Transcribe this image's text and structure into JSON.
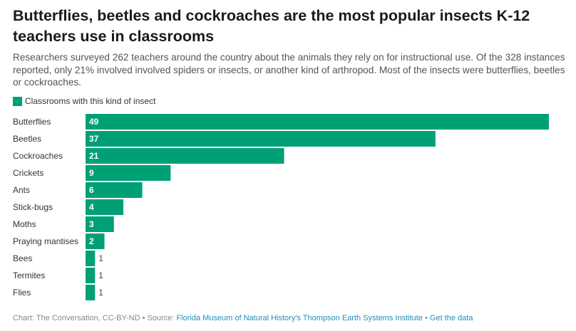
{
  "title": "Butterflies, beetles and cockroaches are the most popular insects K-12 teachers use in classrooms",
  "subtitle": "Researchers surveyed 262 teachers around the country about the animals they rely on for instructional use. Of the 328 instances reported, only 21% involved involved spiders or insects, or another kind of arthropod. Most of the insects were butterflies, beetles or cockroaches.",
  "legend_label": "Classrooms with this kind of insect",
  "colors": {
    "bar": "#00a076",
    "label_inside": "#ffffff",
    "label_outside": "#444444"
  },
  "chart_data": {
    "type": "bar",
    "orientation": "horizontal",
    "categories": [
      "Butterflies",
      "Beetles",
      "Cockroaches",
      "Crickets",
      "Ants",
      "Stick-bugs",
      "Moths",
      "Praying mantises",
      "Bees",
      "Termites",
      "Flies"
    ],
    "series": [
      {
        "name": "Classrooms with this kind of insect",
        "values": [
          49,
          37,
          21,
          9,
          6,
          4,
          3,
          2,
          1,
          1,
          1
        ]
      }
    ],
    "xlim": [
      0,
      49
    ],
    "grid": false,
    "legend_position": "top-left"
  },
  "footer": {
    "prefix": "Chart: The Conversation, CC-BY-ND • Source: ",
    "source_link": "Florida Museum of Natural History's Thompson Earth Systems Institute",
    "separator": " • ",
    "data_link": "Get the data"
  }
}
